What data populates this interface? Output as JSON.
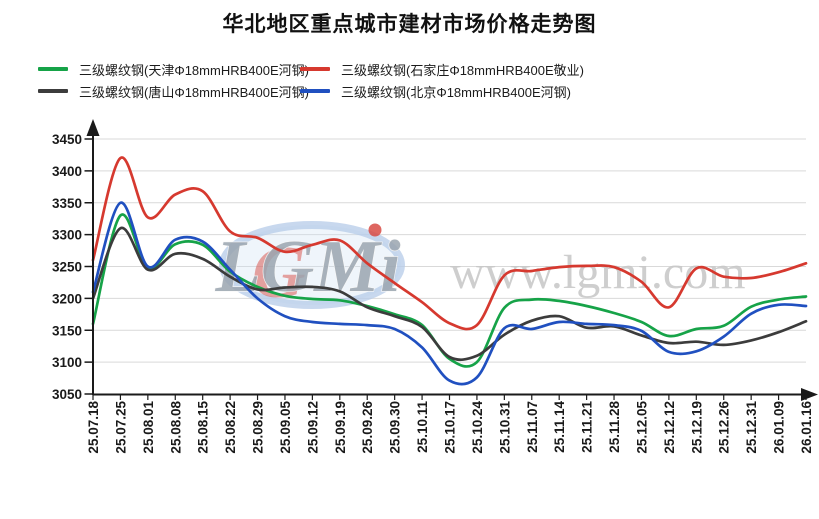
{
  "title": "华北地区重点城市建材市场价格走势图",
  "watermark": {
    "logo_text": "LGMi",
    "url_text": "www.lgmi.com",
    "ellipse_color": "#b5cbe8",
    "logo_color": "#9aa4af",
    "accent_color": "#d84b44",
    "url_color": "#c6c6c6"
  },
  "chart_data": {
    "type": "line",
    "title": "华北地区重点城市建材市场价格走势图",
    "categories": [
      "25.07.18",
      "25.07.25",
      "25.08.01",
      "25.08.08",
      "25.08.15",
      "25.08.22",
      "25.08.29",
      "25.09.05",
      "25.09.12",
      "25.09.19",
      "25.09.26",
      "25.09.30",
      "25.10.11",
      "25.10.17",
      "25.10.24",
      "25.10.31",
      "25.11.07",
      "25.11.14",
      "25.11.21",
      "25.11.28",
      "25.12.05",
      "25.12.12",
      "25.12.19",
      "25.12.26",
      "25.12.31",
      "26.01.09",
      "26.01.16"
    ],
    "ylabel": "",
    "xlabel": "",
    "ylim": [
      3050,
      3450
    ],
    "ytick_step": 50,
    "grid": true,
    "legend_position": "top-left",
    "x_label_rotation": -90,
    "axis_color": "#1a1a1a",
    "grid_color": "#d9d9d9",
    "series": [
      {
        "name": "三级螺纹钢(天津Φ18mmHRB400E河钢)",
        "color": "#16a348",
        "values": [
          3160,
          3330,
          3248,
          3285,
          3284,
          3242,
          3218,
          3204,
          3199,
          3197,
          3188,
          3175,
          3158,
          3105,
          3100,
          3185,
          3198,
          3196,
          3188,
          3177,
          3163,
          3141,
          3152,
          3157,
          3187,
          3198,
          3203
        ]
      },
      {
        "name": "三级螺纹钢(石家庄Φ18mmHRB400E敬业)",
        "color": "#d6392f",
        "values": [
          3260,
          3420,
          3327,
          3363,
          3368,
          3305,
          3295,
          3273,
          3284,
          3291,
          3255,
          3224,
          3194,
          3161,
          3158,
          3236,
          3243,
          3249,
          3251,
          3249,
          3226,
          3186,
          3247,
          3234,
          3232,
          3241,
          3255
        ]
      },
      {
        "name": "三级螺纹钢(唐山Φ18mmHRB400E河钢)",
        "color": "#3c3c3c",
        "values": [
          3200,
          3310,
          3245,
          3270,
          3262,
          3234,
          3214,
          3217,
          3218,
          3211,
          3186,
          3172,
          3155,
          3108,
          3110,
          3143,
          3165,
          3172,
          3154,
          3156,
          3142,
          3130,
          3132,
          3127,
          3134,
          3147,
          3164
        ]
      },
      {
        "name": "三级螺纹钢(北京Φ18mmHRB400E河钢)",
        "color": "#2050c0",
        "values": [
          3210,
          3350,
          3250,
          3292,
          3289,
          3245,
          3200,
          3172,
          3163,
          3160,
          3158,
          3152,
          3123,
          3071,
          3076,
          3153,
          3152,
          3163,
          3160,
          3158,
          3149,
          3116,
          3117,
          3140,
          3176,
          3190,
          3188
        ]
      }
    ],
    "draw_order": [
      0,
      2,
      3,
      1
    ]
  }
}
